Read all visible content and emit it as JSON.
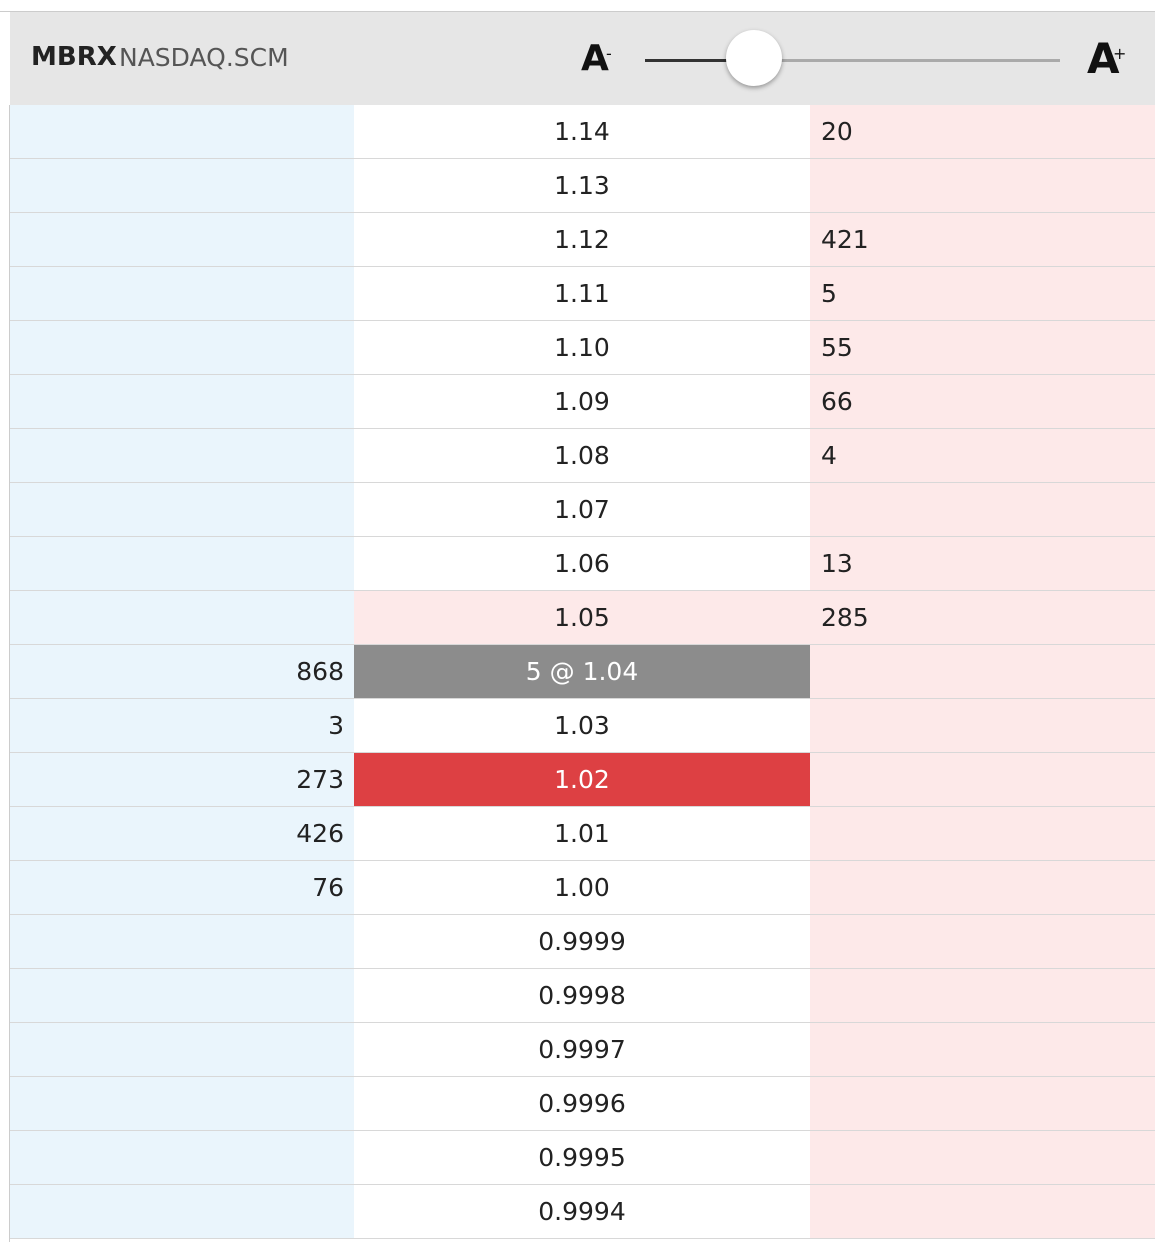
{
  "header": {
    "symbol": "MBRX",
    "exchange": "NASDAQ.SCM",
    "decrease_label": "A",
    "decrease_sign": "-",
    "increase_label": "A",
    "increase_sign": "+"
  },
  "ladder": {
    "rows": [
      {
        "bid": null,
        "price": "1.14",
        "ask": 20
      },
      {
        "bid": null,
        "price": "1.13",
        "ask": null
      },
      {
        "bid": null,
        "price": "1.12",
        "ask": 421
      },
      {
        "bid": null,
        "price": "1.11",
        "ask": 5
      },
      {
        "bid": null,
        "price": "1.10",
        "ask": 55
      },
      {
        "bid": null,
        "price": "1.09",
        "ask": 66
      },
      {
        "bid": null,
        "price": "1.08",
        "ask": 4
      },
      {
        "bid": null,
        "price": "1.07",
        "ask": null
      },
      {
        "bid": null,
        "price": "1.06",
        "ask": 13
      },
      {
        "bid": null,
        "price": "1.05",
        "ask": 285,
        "price_bg": "#fde9e9"
      },
      {
        "bid": 868,
        "price": "5 @ 1.04",
        "ask": null,
        "price_bg": "#8c8c8c",
        "price_color": "#ffffff"
      },
      {
        "bid": 3,
        "price": "1.03",
        "ask": null
      },
      {
        "bid": 273,
        "price": "1.02",
        "ask": null,
        "price_bg": "#dd4043",
        "price_color": "#ffffff"
      },
      {
        "bid": 426,
        "price": "1.01",
        "ask": null
      },
      {
        "bid": 76,
        "price": "1.00",
        "ask": null
      },
      {
        "bid": null,
        "price": "0.9999",
        "ask": null
      },
      {
        "bid": null,
        "price": "0.9998",
        "ask": null
      },
      {
        "bid": null,
        "price": "0.9997",
        "ask": null
      },
      {
        "bid": null,
        "price": "0.9996",
        "ask": null
      },
      {
        "bid": null,
        "price": "0.9995",
        "ask": null
      },
      {
        "bid": null,
        "price": "0.9994",
        "ask": null
      }
    ]
  }
}
